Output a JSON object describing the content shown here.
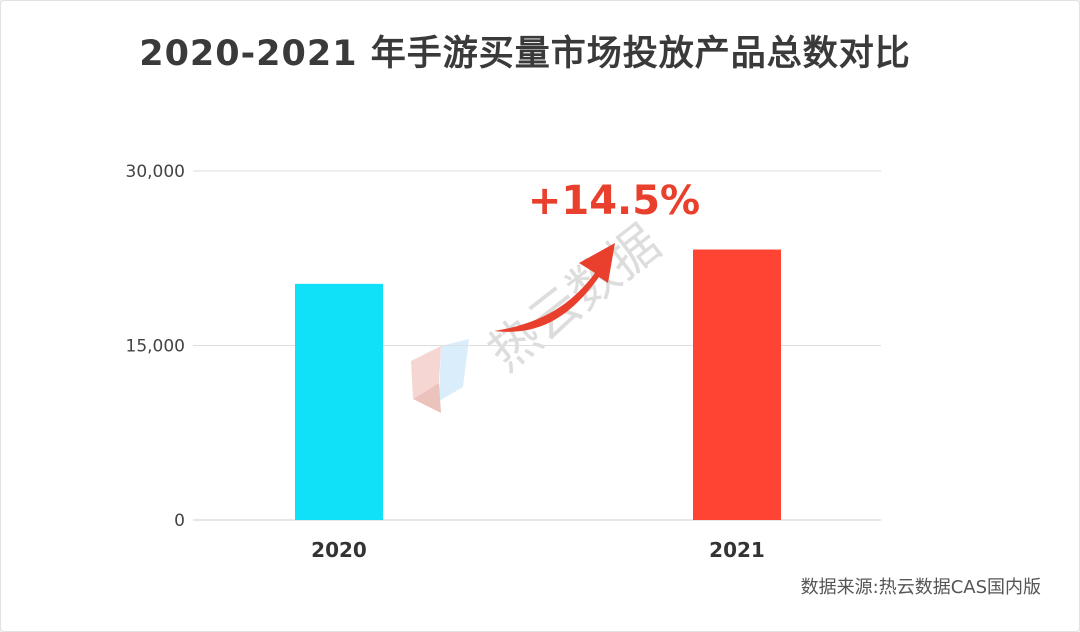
{
  "chart_data": {
    "type": "bar",
    "title": "2020-2021 年手游买量市场投放产品总数对比",
    "categories": [
      "2020",
      "2021"
    ],
    "values": [
      20300,
      23250
    ],
    "colors": [
      "#10e0f8",
      "#ff4433"
    ],
    "ylim": [
      0,
      30000
    ],
    "yticks": [
      {
        "value": 0,
        "label": "0"
      },
      {
        "value": 15000,
        "label": "15,000"
      },
      {
        "value": 30000,
        "label": "30,000"
      }
    ],
    "grid": true,
    "annotation": {
      "text": "+14.5%",
      "color": "#e8402c"
    },
    "source": "数据来源:热云数据CAS国内版"
  },
  "watermark": {
    "text": "热云数据"
  }
}
